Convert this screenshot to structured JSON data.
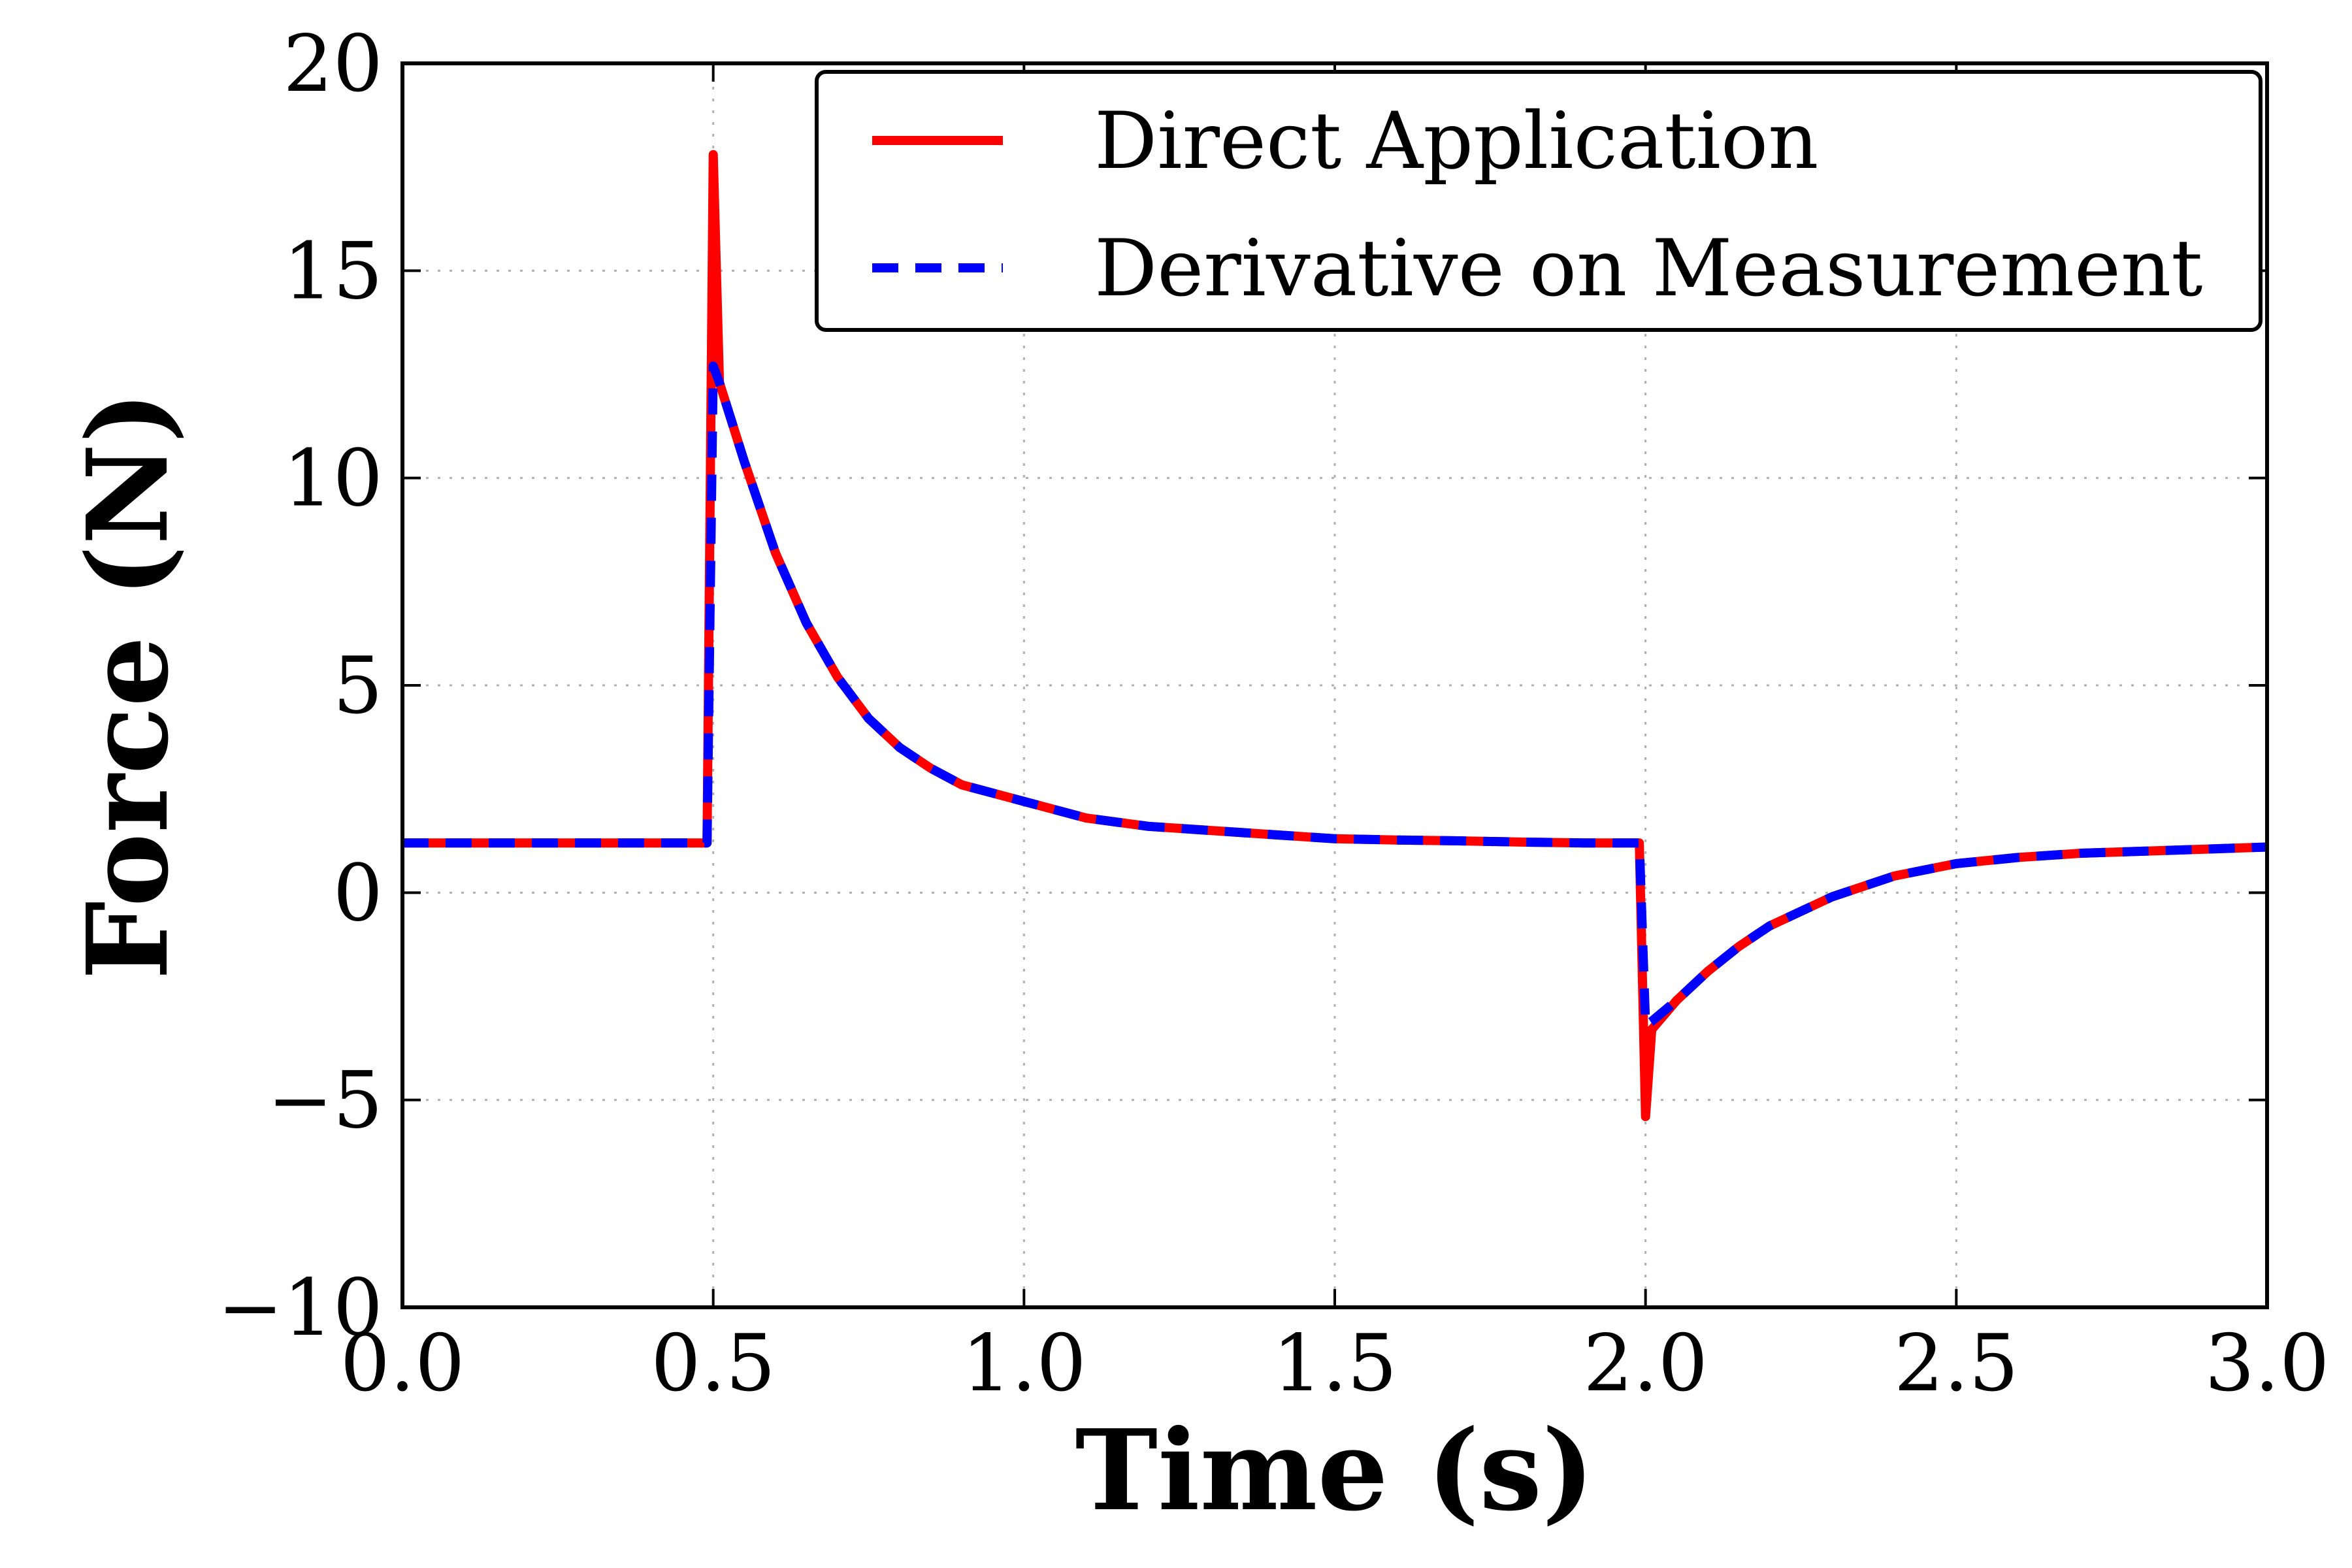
{
  "chart_data": {
    "type": "line",
    "title": "",
    "xlabel": "Time (s)",
    "ylabel": "Force (N)",
    "xlim": [
      0.0,
      3.0
    ],
    "ylim": [
      -10,
      20
    ],
    "x_ticks": [
      0.0,
      0.5,
      1.0,
      1.5,
      2.0,
      2.5,
      3.0
    ],
    "x_tick_labels": [
      "0.0",
      "0.5",
      "1.0",
      "1.5",
      "2.0",
      "2.5",
      "3.0"
    ],
    "y_ticks": [
      -10,
      -5,
      0,
      5,
      10,
      15,
      20
    ],
    "y_tick_labels": [
      "−10",
      "−5",
      "0",
      "5",
      "10",
      "15",
      "20"
    ],
    "grid": true,
    "legend_position": "top-right",
    "series": [
      {
        "name": "Direct Application",
        "color": "#ff0000",
        "style": "solid",
        "points": [
          [
            0.0,
            1.2
          ],
          [
            0.1,
            1.2
          ],
          [
            0.2,
            1.2
          ],
          [
            0.3,
            1.2
          ],
          [
            0.4,
            1.2
          ],
          [
            0.49,
            1.2
          ],
          [
            0.5,
            17.8
          ],
          [
            0.51,
            12.3
          ],
          [
            0.55,
            10.4
          ],
          [
            0.6,
            8.2
          ],
          [
            0.65,
            6.5
          ],
          [
            0.7,
            5.2
          ],
          [
            0.75,
            4.2
          ],
          [
            0.8,
            3.5
          ],
          [
            0.85,
            3.0
          ],
          [
            0.9,
            2.6
          ],
          [
            1.0,
            2.2
          ],
          [
            1.1,
            1.8
          ],
          [
            1.2,
            1.6
          ],
          [
            1.3,
            1.5
          ],
          [
            1.4,
            1.4
          ],
          [
            1.5,
            1.3
          ],
          [
            1.6,
            1.27
          ],
          [
            1.7,
            1.25
          ],
          [
            1.8,
            1.22
          ],
          [
            1.9,
            1.2
          ],
          [
            1.99,
            1.2
          ],
          [
            2.0,
            -5.4
          ],
          [
            2.01,
            -3.3
          ],
          [
            2.05,
            -2.6
          ],
          [
            2.1,
            -1.9
          ],
          [
            2.15,
            -1.3
          ],
          [
            2.2,
            -0.8
          ],
          [
            2.3,
            -0.1
          ],
          [
            2.4,
            0.4
          ],
          [
            2.5,
            0.7
          ],
          [
            2.6,
            0.85
          ],
          [
            2.7,
            0.95
          ],
          [
            2.8,
            1.0
          ],
          [
            2.9,
            1.05
          ],
          [
            3.0,
            1.1
          ]
        ]
      },
      {
        "name": "Derivative on Measurement",
        "color": "#0000ff",
        "style": "dashed",
        "points": [
          [
            0.0,
            1.2
          ],
          [
            0.1,
            1.2
          ],
          [
            0.2,
            1.2
          ],
          [
            0.3,
            1.2
          ],
          [
            0.4,
            1.2
          ],
          [
            0.49,
            1.2
          ],
          [
            0.5,
            12.7
          ],
          [
            0.51,
            12.3
          ],
          [
            0.55,
            10.4
          ],
          [
            0.6,
            8.2
          ],
          [
            0.65,
            6.5
          ],
          [
            0.7,
            5.2
          ],
          [
            0.75,
            4.2
          ],
          [
            0.8,
            3.5
          ],
          [
            0.85,
            3.0
          ],
          [
            0.9,
            2.6
          ],
          [
            1.0,
            2.2
          ],
          [
            1.1,
            1.8
          ],
          [
            1.2,
            1.6
          ],
          [
            1.3,
            1.5
          ],
          [
            1.4,
            1.4
          ],
          [
            1.5,
            1.3
          ],
          [
            1.6,
            1.27
          ],
          [
            1.7,
            1.25
          ],
          [
            1.8,
            1.22
          ],
          [
            1.9,
            1.2
          ],
          [
            1.99,
            1.2
          ],
          [
            2.0,
            -3.2
          ],
          [
            2.01,
            -3.1
          ],
          [
            2.05,
            -2.6
          ],
          [
            2.1,
            -1.9
          ],
          [
            2.15,
            -1.3
          ],
          [
            2.2,
            -0.8
          ],
          [
            2.3,
            -0.1
          ],
          [
            2.4,
            0.4
          ],
          [
            2.5,
            0.7
          ],
          [
            2.6,
            0.85
          ],
          [
            2.7,
            0.95
          ],
          [
            2.8,
            1.0
          ],
          [
            2.9,
            1.05
          ],
          [
            3.0,
            1.1
          ]
        ]
      }
    ]
  }
}
